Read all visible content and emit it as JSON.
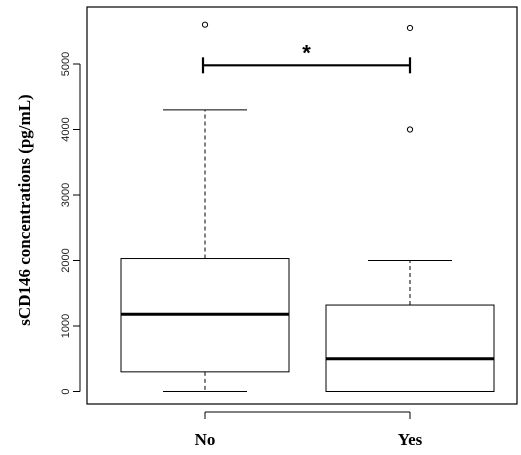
{
  "chart_data": {
    "type": "boxplot",
    "ylabel": "sCD146 concentrations (pg/mL)",
    "xlabel": "",
    "ylim": [
      -200,
      5800
    ],
    "yticks": [
      "0",
      "1000",
      "2000",
      "3000",
      "4000",
      "5000"
    ],
    "ytick_values": [
      0,
      1000,
      2000,
      3000,
      4000,
      5000
    ],
    "grid": false,
    "categories": [
      "No",
      "Yes"
    ],
    "boxes": [
      {
        "category": "No",
        "whisker_low": 0,
        "q1": 300,
        "median": 1180,
        "q3": 2030,
        "whisker_high": 4300,
        "outliers": [
          5600
        ]
      },
      {
        "category": "Yes",
        "whisker_low": 0,
        "q1": 0,
        "median": 500,
        "q3": 1320,
        "whisker_high": 2000,
        "outliers": [
          4000,
          5550
        ]
      }
    ],
    "significance": {
      "from": "No",
      "to": "Yes",
      "y": 4980,
      "label": "*"
    }
  }
}
